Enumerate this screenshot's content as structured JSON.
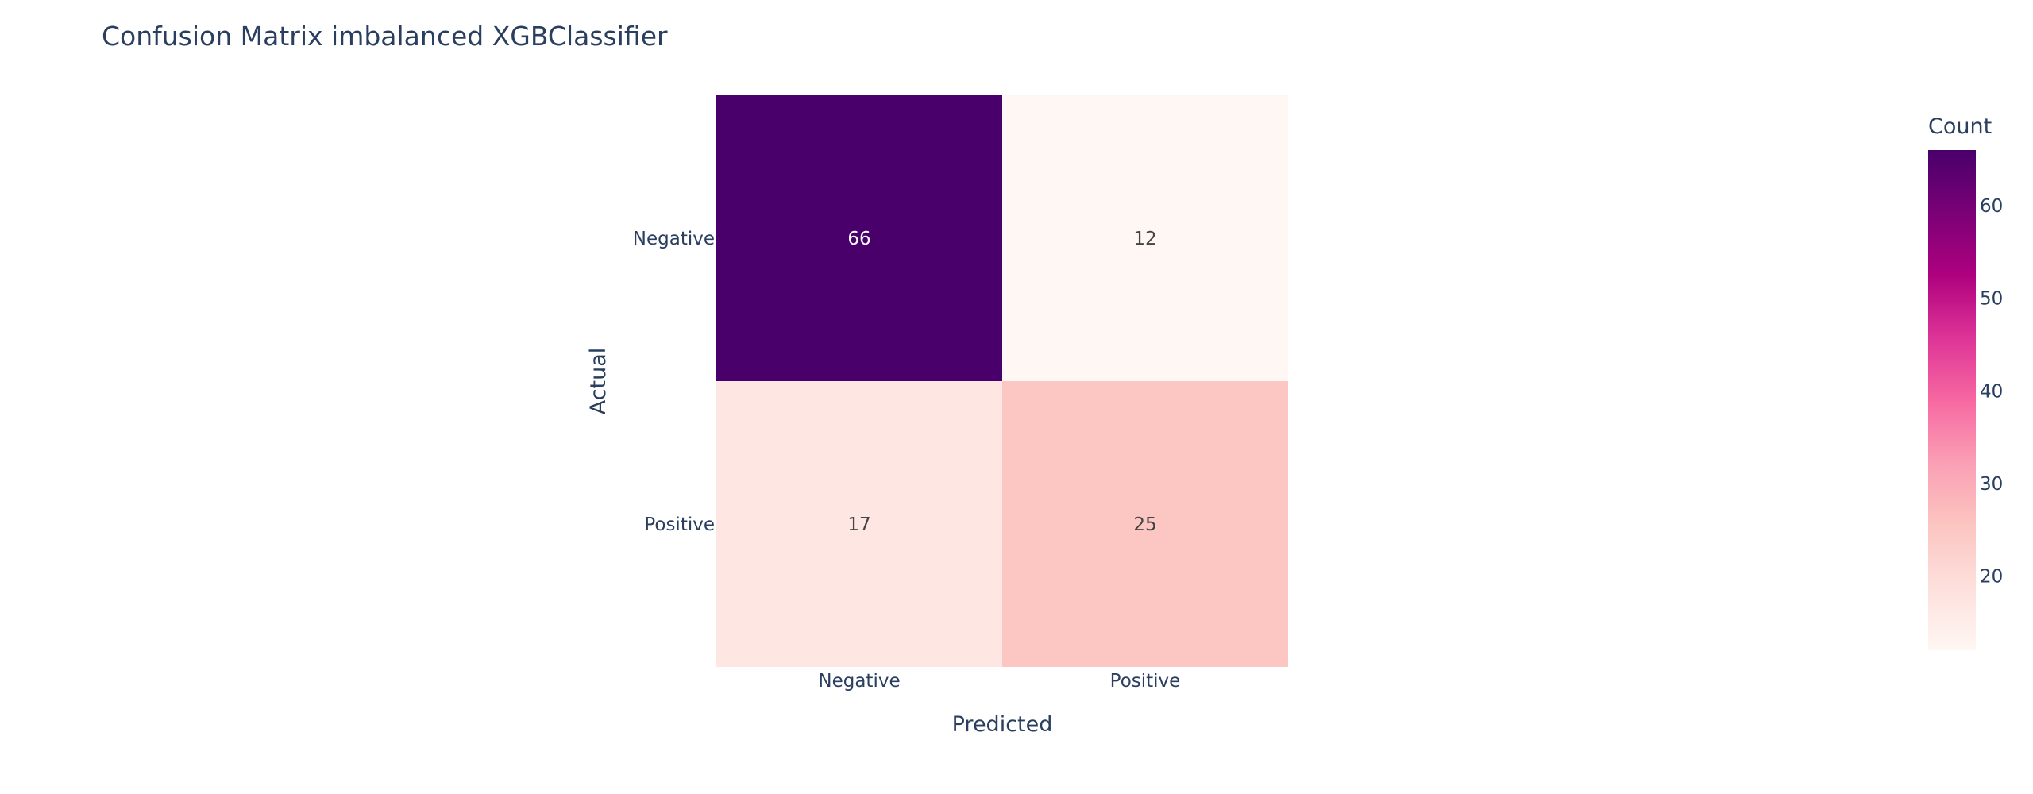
{
  "chart_data": {
    "type": "heatmap",
    "title": "Confusion Matrix imbalanced XGBClassifier",
    "xlabel": "Predicted",
    "ylabel": "Actual",
    "x_categories": [
      "Negative",
      "Positive"
    ],
    "y_categories": [
      "Negative",
      "Positive"
    ],
    "z": [
      [
        66,
        12
      ],
      [
        17,
        25
      ]
    ],
    "cell_labels": [
      [
        "66",
        "12"
      ],
      [
        "17",
        "25"
      ]
    ],
    "colorbar": {
      "title": "Count",
      "range": [
        12,
        66
      ],
      "ticks": [
        20,
        30,
        40,
        50,
        60
      ],
      "colorscale": [
        "#fff7f3",
        "#fde0dd",
        "#fcc5c0",
        "#fa9fb5",
        "#f768a1",
        "#dd3497",
        "#ae017e",
        "#7a0177",
        "#49006a"
      ]
    },
    "grid": false
  }
}
